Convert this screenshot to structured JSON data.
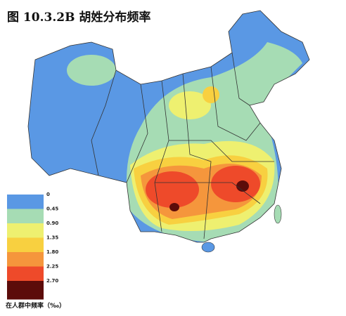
{
  "title": "图 10.3.2B 胡姓分布频率",
  "legend": {
    "title": "在人群中频率（‰）",
    "items": [
      {
        "label": "0",
        "color": "#5a98e4"
      },
      {
        "label": "0.45",
        "color": "#a6dcb4"
      },
      {
        "label": "0.90",
        "color": "#eef070"
      },
      {
        "label": "1.35",
        "color": "#f8d040"
      },
      {
        "label": "1.80",
        "color": "#f5963c"
      },
      {
        "label": "2.25",
        "color": "#ee4a2a"
      },
      {
        "label": "2.70",
        "color": "#5c0c0a"
      }
    ]
  }
}
